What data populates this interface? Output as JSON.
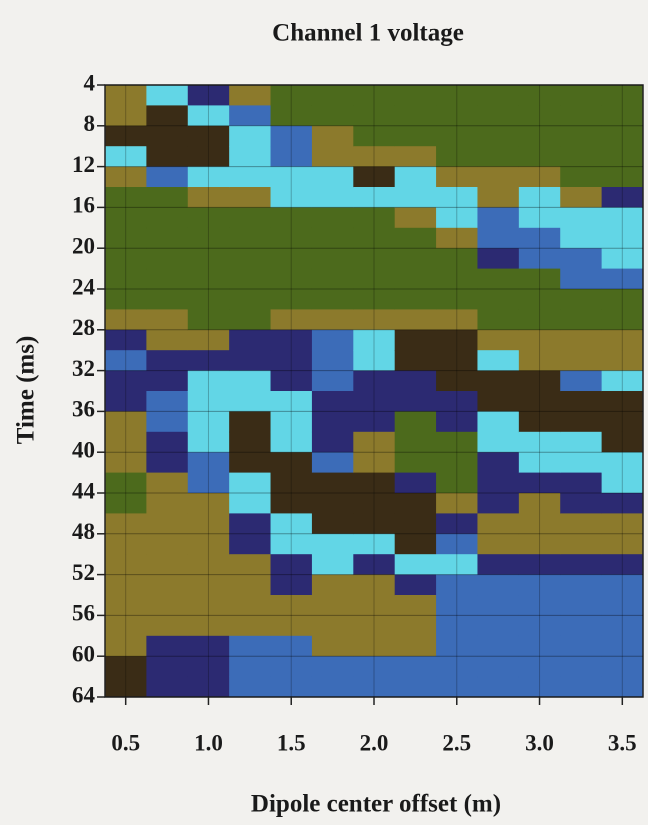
{
  "chart_data": {
    "type": "heatmap",
    "title": "Channel 1 voltage",
    "x_label": "Dipole center offset (m)",
    "y_label": "Time (ms)",
    "x": [
      0.5,
      0.75,
      1.0,
      1.25,
      1.5,
      1.75,
      2.0,
      2.25,
      2.5,
      2.75,
      3.0,
      3.25,
      3.5
    ],
    "y": [
      5,
      7,
      9,
      11,
      13,
      15,
      17,
      19,
      21,
      23,
      25,
      27,
      29,
      31,
      33,
      35,
      37,
      39,
      41,
      43,
      45,
      47,
      49,
      51,
      53,
      55,
      57,
      59,
      61,
      63
    ],
    "colorscale": [
      "#3a2c16",
      "#8c7a2c",
      "#4c6a1c",
      "#2c2a72",
      "#3c6cb8",
      "#62d6e6"
    ],
    "z": [
      [
        1,
        1,
        0,
        5,
        1,
        2,
        2,
        2,
        2,
        2,
        2,
        1,
        3,
        4,
        3,
        3,
        1,
        1,
        1,
        2,
        2,
        1,
        1,
        1,
        1,
        1,
        1,
        1,
        0,
        0
      ],
      [
        5,
        0,
        0,
        0,
        4,
        2,
        2,
        2,
        2,
        2,
        2,
        1,
        1,
        3,
        3,
        4,
        4,
        3,
        3,
        1,
        1,
        1,
        1,
        1,
        1,
        1,
        1,
        3,
        3,
        3
      ],
      [
        3,
        5,
        0,
        0,
        5,
        1,
        2,
        2,
        2,
        2,
        2,
        2,
        1,
        3,
        5,
        5,
        5,
        5,
        4,
        4,
        1,
        1,
        1,
        1,
        1,
        1,
        1,
        3,
        3,
        3
      ],
      [
        1,
        4,
        5,
        5,
        5,
        1,
        2,
        2,
        2,
        2,
        2,
        2,
        3,
        3,
        5,
        5,
        0,
        0,
        0,
        5,
        5,
        3,
        3,
        1,
        1,
        1,
        1,
        4,
        4,
        4
      ],
      [
        2,
        2,
        4,
        4,
        5,
        5,
        2,
        2,
        2,
        2,
        2,
        1,
        3,
        3,
        3,
        5,
        5,
        5,
        0,
        0,
        0,
        5,
        5,
        3,
        3,
        1,
        1,
        4,
        4,
        4
      ],
      [
        2,
        2,
        1,
        1,
        5,
        5,
        2,
        2,
        2,
        2,
        2,
        1,
        4,
        4,
        4,
        3,
        3,
        3,
        4,
        0,
        0,
        0,
        5,
        5,
        1,
        1,
        1,
        1,
        4,
        4
      ],
      [
        2,
        2,
        2,
        1,
        0,
        5,
        2,
        2,
        2,
        2,
        2,
        1,
        5,
        5,
        3,
        3,
        3,
        1,
        1,
        0,
        0,
        0,
        5,
        3,
        1,
        1,
        1,
        1,
        4,
        4
      ],
      [
        2,
        2,
        2,
        1,
        5,
        5,
        1,
        2,
        2,
        2,
        2,
        1,
        0,
        0,
        3,
        3,
        2,
        2,
        2,
        3,
        0,
        0,
        0,
        5,
        3,
        1,
        1,
        1,
        4,
        4
      ],
      [
        2,
        2,
        2,
        2,
        1,
        5,
        5,
        1,
        2,
        2,
        2,
        1,
        0,
        0,
        0,
        3,
        3,
        2,
        2,
        2,
        1,
        3,
        4,
        5,
        4,
        4,
        4,
        4,
        4,
        4
      ],
      [
        2,
        2,
        2,
        2,
        1,
        1,
        4,
        4,
        3,
        2,
        2,
        2,
        1,
        5,
        0,
        0,
        5,
        5,
        3,
        3,
        3,
        1,
        1,
        3,
        4,
        4,
        4,
        4,
        4,
        4
      ],
      [
        2,
        2,
        2,
        2,
        1,
        5,
        5,
        4,
        4,
        2,
        2,
        2,
        1,
        1,
        0,
        0,
        0,
        5,
        5,
        3,
        1,
        1,
        1,
        3,
        4,
        4,
        4,
        4,
        4,
        4
      ],
      [
        2,
        2,
        2,
        2,
        2,
        1,
        5,
        5,
        4,
        4,
        2,
        2,
        1,
        1,
        4,
        0,
        0,
        5,
        5,
        3,
        3,
        1,
        1,
        3,
        4,
        4,
        4,
        4,
        4,
        4
      ],
      [
        2,
        2,
        2,
        2,
        2,
        3,
        5,
        5,
        5,
        4,
        2,
        2,
        1,
        1,
        5,
        0,
        0,
        0,
        5,
        5,
        3,
        1,
        1,
        3,
        4,
        4,
        4,
        4,
        4,
        4
      ]
    ],
    "xlim": [
      0.375,
      3.625
    ],
    "ylim": [
      4,
      64
    ],
    "y_inverted": true,
    "xticks": [
      {
        "value": 0.5,
        "label": "0.5"
      },
      {
        "value": 1.0,
        "label": "1.0"
      },
      {
        "value": 1.5,
        "label": "1.5"
      },
      {
        "value": 2.0,
        "label": "2.0"
      },
      {
        "value": 2.5,
        "label": "2.5"
      },
      {
        "value": 3.0,
        "label": "3.0"
      },
      {
        "value": 3.5,
        "label": "3.5"
      }
    ],
    "yticks": [
      4,
      8,
      12,
      16,
      20,
      24,
      28,
      32,
      36,
      40,
      44,
      48,
      52,
      56,
      60,
      64
    ],
    "grid": true
  }
}
